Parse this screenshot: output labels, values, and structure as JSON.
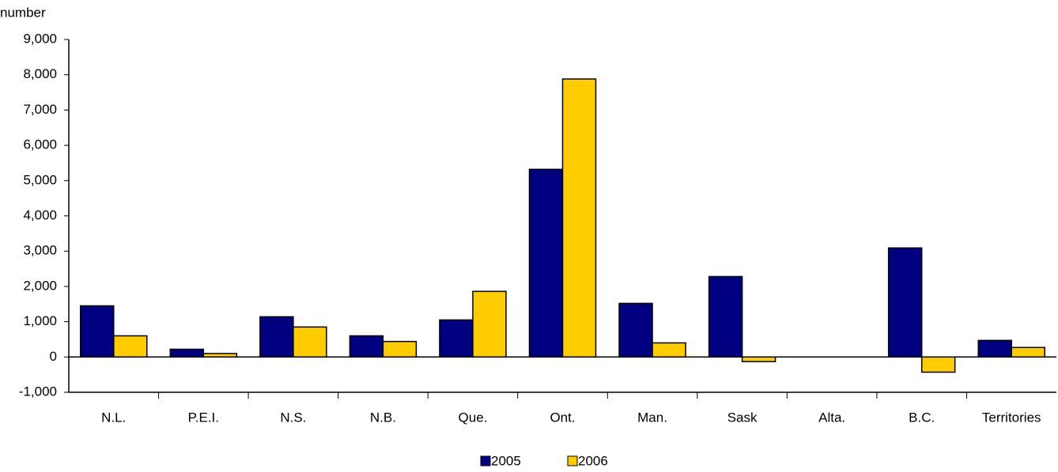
{
  "chart_data": {
    "type": "bar",
    "y_label": "number",
    "categories": [
      "N.L.",
      "P.E.I.",
      "N.S.",
      "N.B.",
      "Que.",
      "Ont.",
      "Man.",
      "Sask",
      "Alta.",
      "B.C.",
      "Territories"
    ],
    "series": [
      {
        "name": "2005",
        "color": "#000080",
        "values": [
          1450,
          220,
          1140,
          600,
          1050,
          5320,
          1520,
          2280,
          0,
          3090,
          470
        ]
      },
      {
        "name": "2006",
        "color": "#ffcc00",
        "values": [
          600,
          100,
          850,
          440,
          1860,
          7880,
          400,
          -130,
          0,
          -430,
          270
        ]
      }
    ],
    "ylim": [
      -1000,
      9000
    ],
    "yticks": [
      {
        "value": -1000,
        "label": "-1,000"
      },
      0,
      {
        "value": 1000,
        "label": "1,000"
      },
      {
        "value": 2000,
        "label": "2,000"
      },
      {
        "value": 3000,
        "label": "3,000"
      },
      {
        "value": 4000,
        "label": "4,000"
      },
      {
        "value": 5000,
        "label": "5,000"
      },
      {
        "value": 6000,
        "label": "6,000"
      },
      {
        "value": 7000,
        "label": "7,000"
      },
      {
        "value": 8000,
        "label": "8,000"
      },
      {
        "value": 9000,
        "label": "9,000"
      }
    ],
    "grid": false
  }
}
